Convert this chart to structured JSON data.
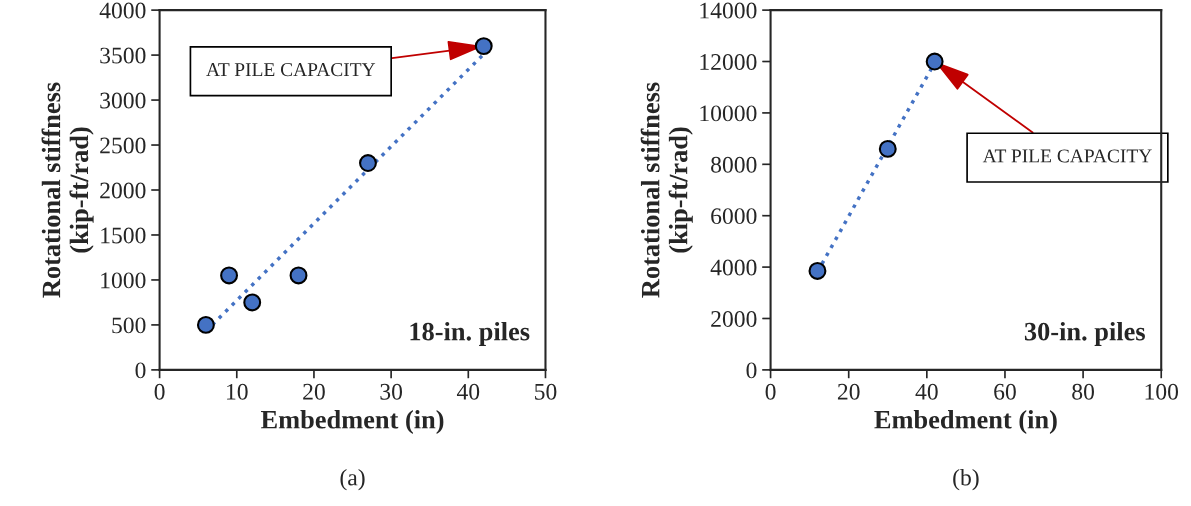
{
  "chart_data": [
    {
      "type": "scatter",
      "xlabel": "Embedment (in)",
      "ylabel": "Rotational stiffness\n(kip-ft/rad)",
      "xlim": [
        0,
        50
      ],
      "xticks": [
        0,
        10,
        20,
        30,
        40,
        50
      ],
      "ylim": [
        0,
        4000
      ],
      "yticks": [
        0,
        500,
        1000,
        1500,
        2000,
        2500,
        3000,
        3500,
        4000
      ],
      "grid": false,
      "marker": "circle",
      "series": [
        {
          "color": "#4472c4",
          "x": [
            6,
            9,
            12,
            18,
            27,
            42
          ],
          "values": [
            500,
            1050,
            750,
            1050,
            2300,
            3600
          ]
        },
        {
          "type": "line",
          "marker": "none",
          "color": "#4472c4",
          "line_style": "dotted",
          "x": [
            6,
            42
          ],
          "values": [
            430,
            3510
          ]
        }
      ],
      "annotations": [
        {
          "text": "AT PILE CAPACITY",
          "x": 42,
          "y": 3600
        },
        "18-in. piles",
        "(a)"
      ]
    },
    {
      "type": "scatter",
      "xlabel": "Embedment (in)",
      "ylabel": "Rotational stiffness\n(kip-ft/rad)",
      "xlim": [
        0,
        100
      ],
      "xticks": [
        0,
        20,
        40,
        60,
        80,
        100
      ],
      "ylim": [
        0,
        14000
      ],
      "yticks": [
        0,
        2000,
        4000,
        6000,
        8000,
        10000,
        12000,
        14000
      ],
      "grid": false,
      "marker": "circle",
      "series": [
        {
          "color": "#4472c4",
          "x": [
            12,
            30,
            42
          ],
          "values": [
            3850,
            8600,
            12000
          ]
        },
        {
          "type": "line",
          "marker": "none",
          "color": "#4472c4",
          "line_style": "dotted",
          "x": [
            12,
            42
          ],
          "values": [
            3810,
            11950
          ]
        }
      ],
      "annotations": [
        {
          "text": "AT PILE CAPACITY",
          "x": 42,
          "y": 12000
        },
        "30-in. piles",
        "(b)"
      ]
    }
  ]
}
